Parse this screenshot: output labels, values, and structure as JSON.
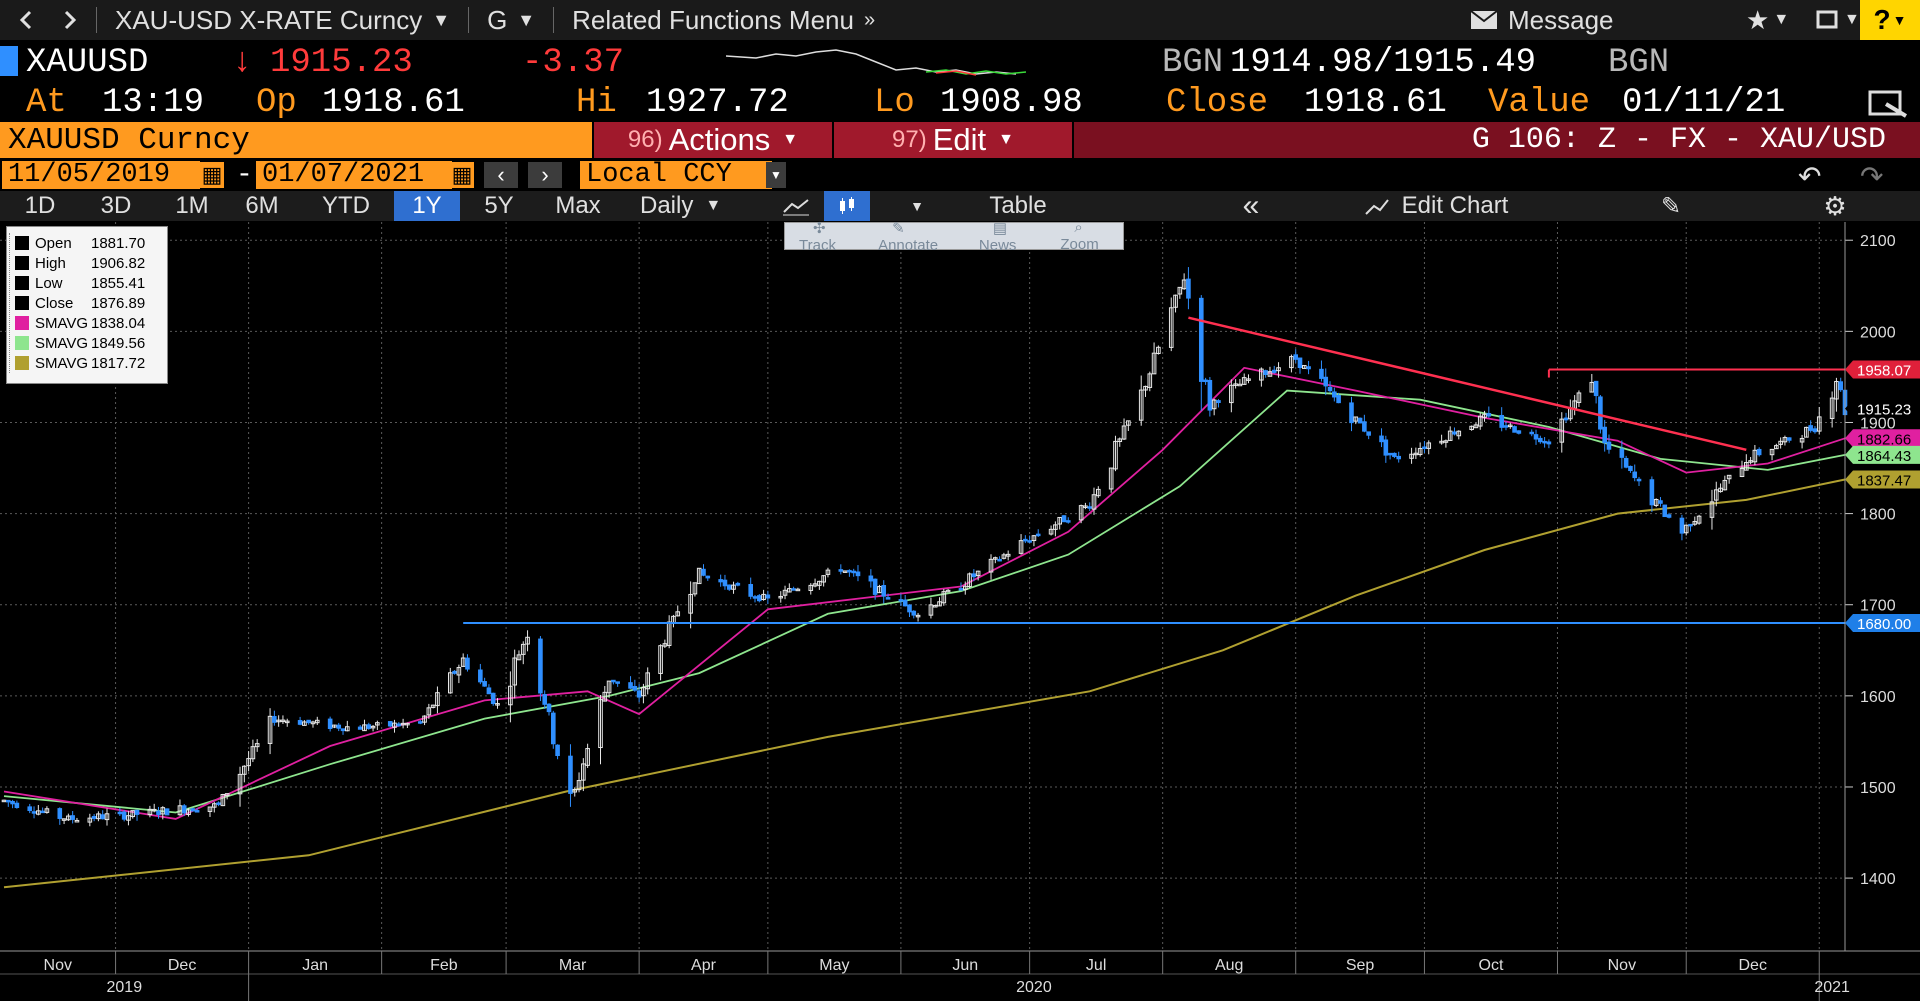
{
  "topbar": {
    "back_icon": "chevron-left-icon",
    "forward_icon": "chevron-right-icon",
    "security_menu": "XAU-USD X-RATE Curncy",
    "g_menu": "G",
    "related": "Related Functions Menu",
    "message": "Message"
  },
  "quote": {
    "ticker": "XAUUSD",
    "last": "1915.23",
    "change": "-3.37",
    "source1": "BGN",
    "bid_ask": "1914.98/1915.49",
    "source2": "BGN",
    "at_label": "At",
    "time": "13:19",
    "op_label": "Op",
    "open": "1918.61",
    "hi_label": "Hi",
    "high": "1927.72",
    "lo_label": "Lo",
    "low": "1908.98",
    "close_label": "Close",
    "close": "1918.61",
    "value_label": "Value",
    "value_date": "01/11/21"
  },
  "bar3": {
    "security": "XAUUSD Curncy",
    "actions_num": "96)",
    "actions": "Actions",
    "edit_num": "97)",
    "edit": "Edit",
    "page_title": "G 106: Z - FX - XAU/USD"
  },
  "range": {
    "start": "11/05/2019",
    "dash": "-",
    "end": "01/07/2021",
    "currency": "Local CCY"
  },
  "timeframes": [
    "1D",
    "3D",
    "1M",
    "6M",
    "YTD",
    "1Y",
    "5Y",
    "Max"
  ],
  "active_timeframe": "1Y",
  "periodicity": "Daily",
  "table_label": "Table",
  "edit_chart_label": "Edit Chart",
  "chart_tools": [
    "Track",
    "Annotate",
    "News",
    "Zoom"
  ],
  "legend": [
    {
      "name": "Open",
      "value": "1881.70",
      "color": "#000000"
    },
    {
      "name": "High",
      "value": "1906.82",
      "color": "#000000"
    },
    {
      "name": "Low",
      "value": "1855.41",
      "color": "#000000"
    },
    {
      "name": "Close",
      "value": "1876.89",
      "color": "#000000"
    },
    {
      "name": "SMAVG",
      "value": "1838.04",
      "color": "#e020a0"
    },
    {
      "name": "SMAVG",
      "value": "1849.56",
      "color": "#8ee58e"
    },
    {
      "name": "SMAVG",
      "value": "1817.72",
      "color": "#b0a030"
    }
  ],
  "colors": {
    "up": "#e8e8e8",
    "down": "#2f8fff",
    "sma_pink": "#e020a0",
    "sma_green": "#8ee58e",
    "sma_olive": "#b0a030",
    "trend_red": "#ff3050",
    "support_blue": "#2f8fff",
    "accent_orange": "#ff9a1f"
  },
  "chart_data": {
    "type": "candlestick",
    "title": "",
    "xlabel": "",
    "ylabel": "",
    "ylim": [
      1320,
      2120
    ],
    "yticks": [
      1400,
      1500,
      1600,
      1700,
      1800,
      1900,
      2000,
      2100
    ],
    "grid": true,
    "months": [
      "Nov",
      "Dec",
      "Jan",
      "Feb",
      "Mar",
      "Apr",
      "May",
      "Jun",
      "Jul",
      "Aug",
      "Sep",
      "Oct",
      "Nov",
      "Dec"
    ],
    "years": [
      "2019",
      "2020",
      "2021"
    ],
    "x_start": "2019-11-05",
    "x_end": "2021-01-07",
    "ohlc_anchors": [
      [
        "2019-11-05",
        1485
      ],
      [
        "2019-11-20",
        1465
      ],
      [
        "2019-12-05",
        1470
      ],
      [
        "2019-12-25",
        1480
      ],
      [
        "2020-01-07",
        1575
      ],
      [
        "2020-01-25",
        1565
      ],
      [
        "2020-02-10",
        1570
      ],
      [
        "2020-02-20",
        1640
      ],
      [
        "2020-02-28",
        1590
      ],
      [
        "2020-03-06",
        1670
      ],
      [
        "2020-03-16",
        1480
      ],
      [
        "2020-03-25",
        1620
      ],
      [
        "2020-04-01",
        1600
      ],
      [
        "2020-04-14",
        1735
      ],
      [
        "2020-05-01",
        1705
      ],
      [
        "2020-05-18",
        1740
      ],
      [
        "2020-06-05",
        1690
      ],
      [
        "2020-06-30",
        1770
      ],
      [
        "2020-07-15",
        1810
      ],
      [
        "2020-07-27",
        1930
      ],
      [
        "2020-08-06",
        2060
      ],
      [
        "2020-08-12",
        1920
      ],
      [
        "2020-08-20",
        1945
      ],
      [
        "2020-09-01",
        1970
      ],
      [
        "2020-09-24",
        1860
      ],
      [
        "2020-10-15",
        1905
      ],
      [
        "2020-10-30",
        1880
      ],
      [
        "2020-11-09",
        1950
      ],
      [
        "2020-11-12",
        1875
      ],
      [
        "2020-11-30",
        1780
      ],
      [
        "2020-12-15",
        1860
      ],
      [
        "2020-12-31",
        1895
      ],
      [
        "2021-01-05",
        1950
      ],
      [
        "2021-01-07",
        1915
      ]
    ],
    "sma_pink": [
      [
        "2019-11-05",
        1495
      ],
      [
        "2019-12-15",
        1465
      ],
      [
        "2020-01-20",
        1545
      ],
      [
        "2020-02-25",
        1595
      ],
      [
        "2020-03-20",
        1605
      ],
      [
        "2020-04-01",
        1580
      ],
      [
        "2020-05-01",
        1695
      ],
      [
        "2020-06-15",
        1720
      ],
      [
        "2020-07-10",
        1780
      ],
      [
        "2020-08-01",
        1870
      ],
      [
        "2020-08-20",
        1960
      ],
      [
        "2020-09-15",
        1935
      ],
      [
        "2020-10-15",
        1905
      ],
      [
        "2020-11-15",
        1880
      ],
      [
        "2020-12-01",
        1845
      ],
      [
        "2020-12-20",
        1855
      ],
      [
        "2021-01-07",
        1882.66
      ]
    ],
    "sma_green": [
      [
        "2019-11-05",
        1490
      ],
      [
        "2019-12-15",
        1472
      ],
      [
        "2020-01-20",
        1525
      ],
      [
        "2020-02-25",
        1575
      ],
      [
        "2020-03-25",
        1600
      ],
      [
        "2020-04-15",
        1625
      ],
      [
        "2020-05-15",
        1690
      ],
      [
        "2020-06-15",
        1715
      ],
      [
        "2020-07-10",
        1755
      ],
      [
        "2020-08-05",
        1830
      ],
      [
        "2020-08-30",
        1935
      ],
      [
        "2020-09-30",
        1925
      ],
      [
        "2020-10-30",
        1895
      ],
      [
        "2020-11-25",
        1860
      ],
      [
        "2020-12-20",
        1848
      ],
      [
        "2021-01-07",
        1864.43
      ]
    ],
    "sma_olive": [
      [
        "2019-11-05",
        1390
      ],
      [
        "2020-01-15",
        1425
      ],
      [
        "2020-03-15",
        1495
      ],
      [
        "2020-05-15",
        1555
      ],
      [
        "2020-07-15",
        1605
      ],
      [
        "2020-08-15",
        1650
      ],
      [
        "2020-09-15",
        1710
      ],
      [
        "2020-10-15",
        1760
      ],
      [
        "2020-11-15",
        1800
      ],
      [
        "2020-12-15",
        1815
      ],
      [
        "2021-01-07",
        1837.47
      ]
    ],
    "resistance_line": {
      "y": 1958.07,
      "from": "2020-10-30",
      "to": "2021-01-07",
      "label": "1958.07"
    },
    "support_line": {
      "y": 1680.0,
      "from": "2020-02-20",
      "to": "2021-01-07",
      "label": "1680.00"
    },
    "downtrend_line": {
      "from": [
        "2020-08-07",
        2015
      ],
      "to": [
        "2020-12-15",
        1870
      ]
    },
    "last_label": "1915.23",
    "axis_labels": [
      {
        "value": 1882.66,
        "label": "1882.66",
        "color": "#e020a0"
      },
      {
        "value": 1864.43,
        "label": "1864.43",
        "color": "#8ee58e"
      },
      {
        "value": 1837.47,
        "label": "1837.47",
        "color": "#b0a030"
      }
    ]
  }
}
